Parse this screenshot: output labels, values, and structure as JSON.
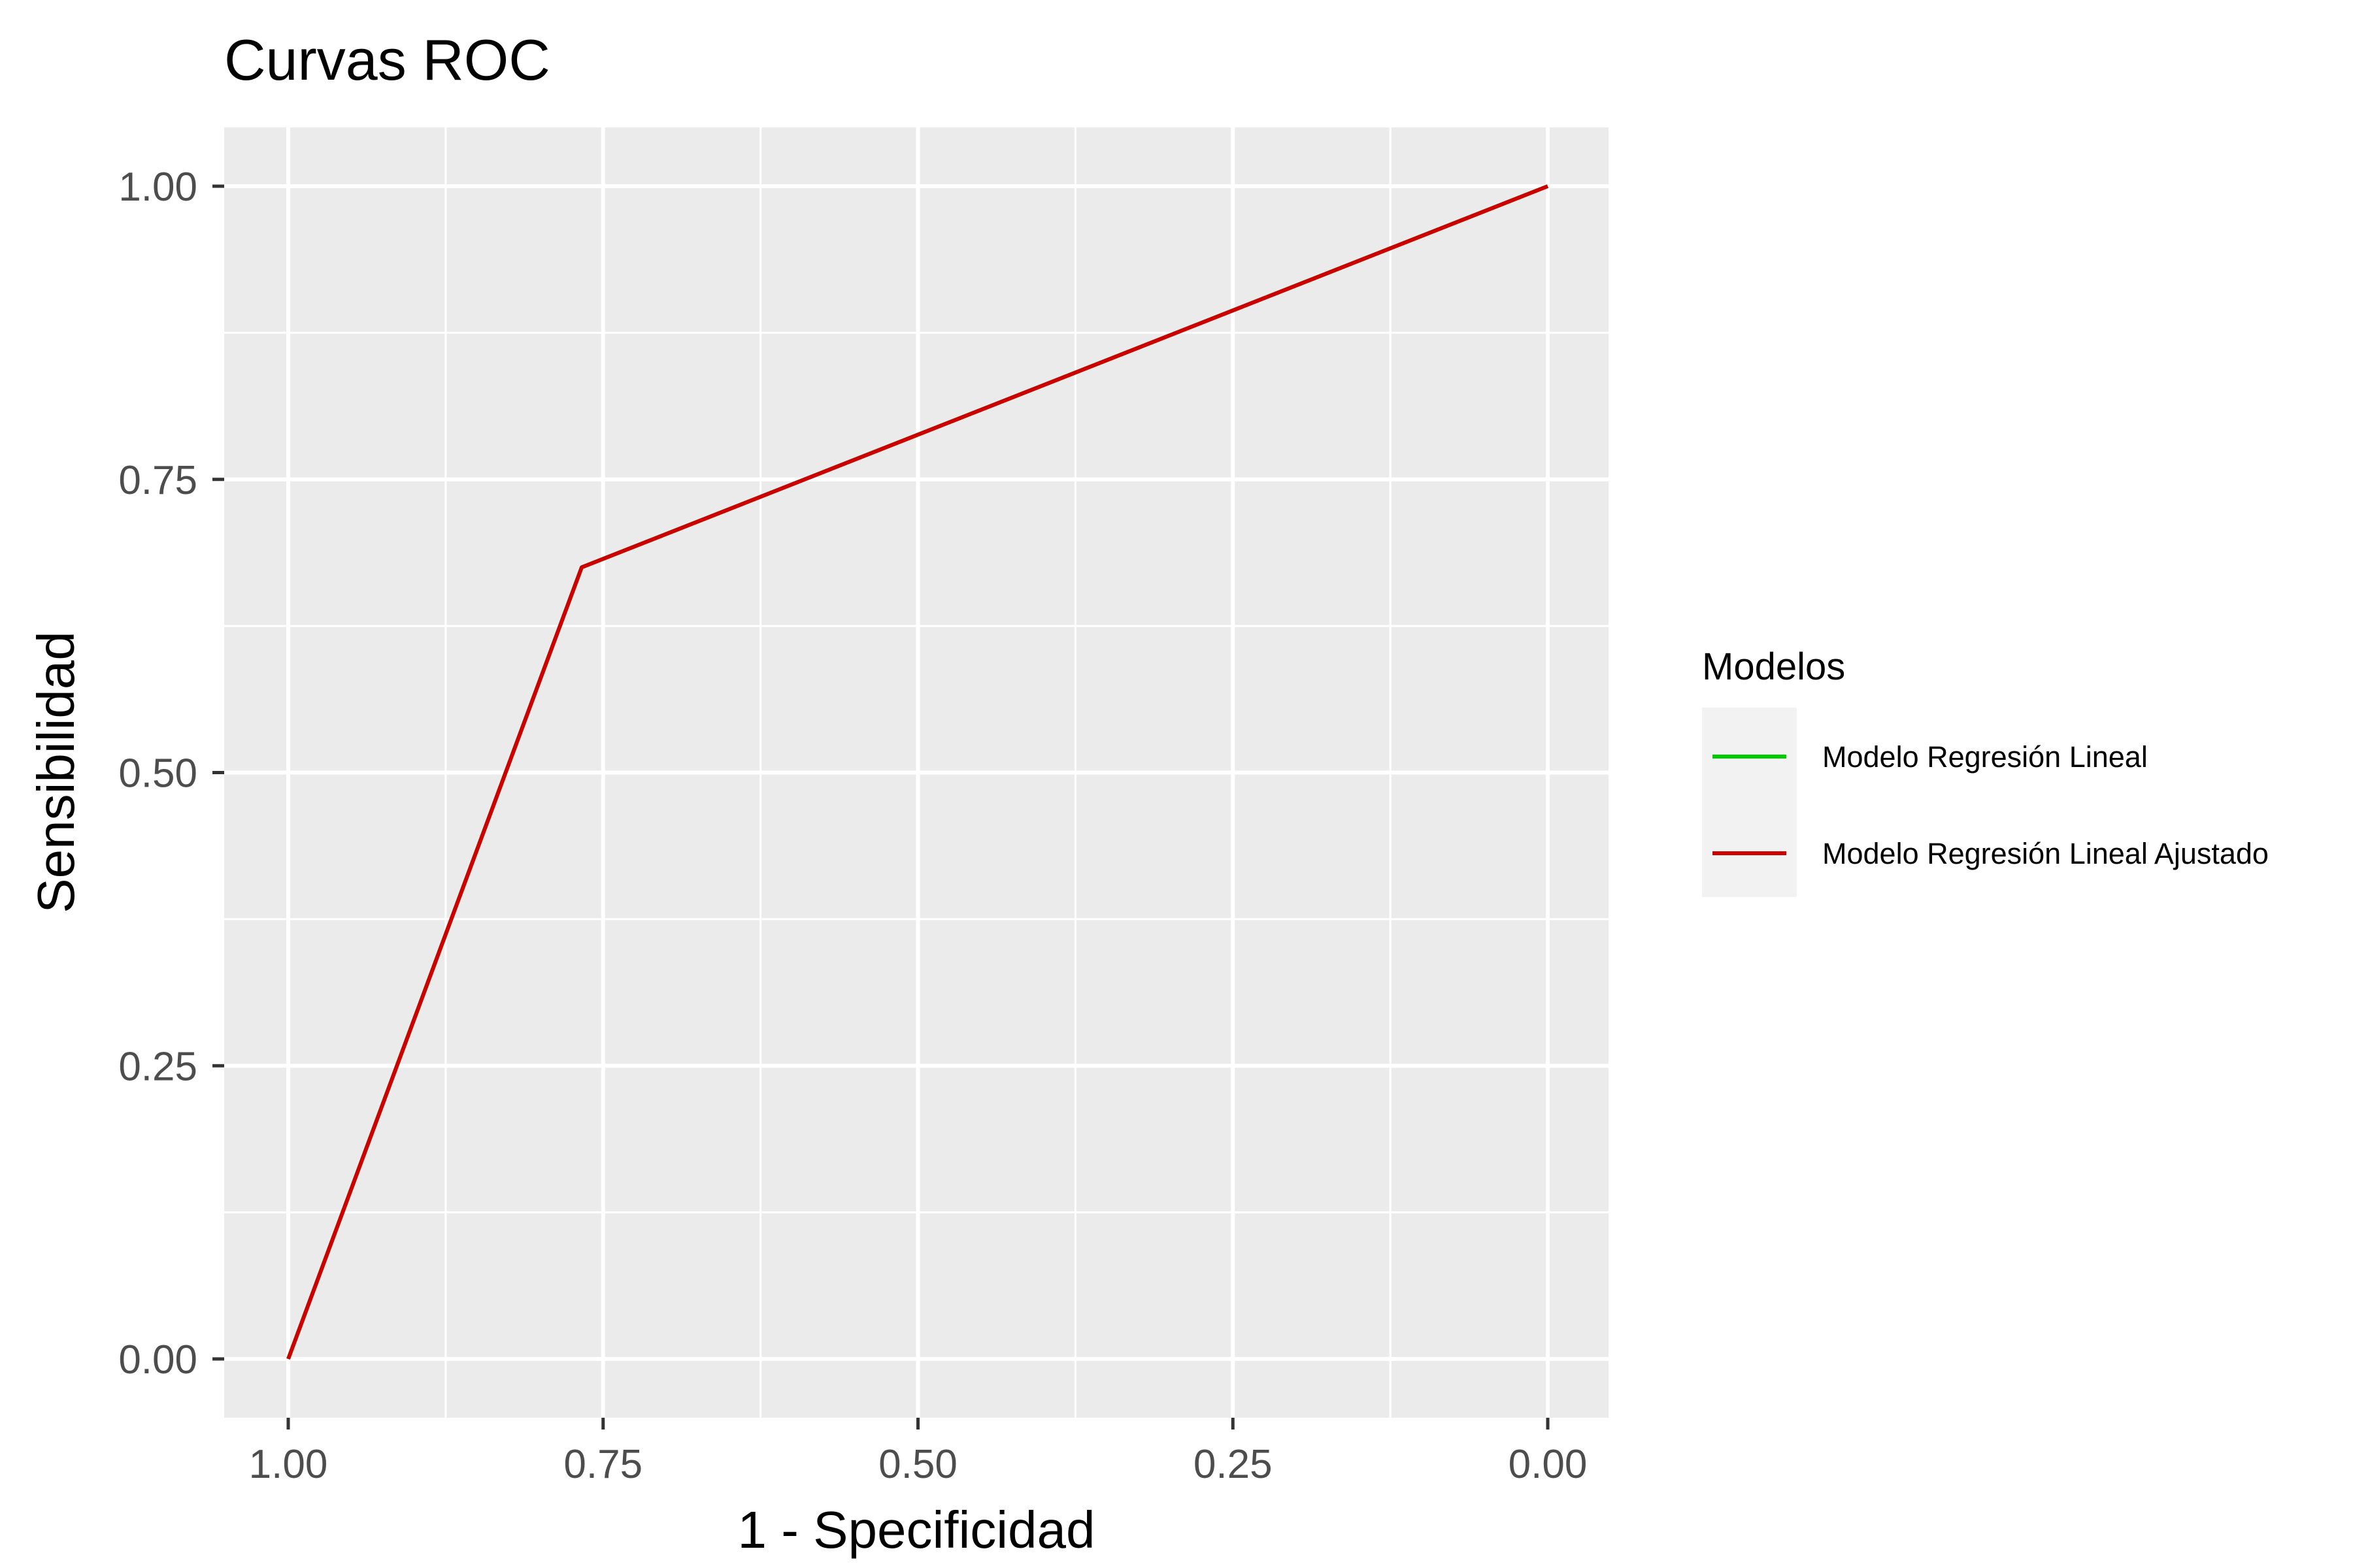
{
  "chart_data": {
    "type": "line",
    "title": "Curvas ROC",
    "xlabel": "1 - Specificidad",
    "ylabel": "Sensibilidad",
    "x_reversed": true,
    "xlim": [
      1.0,
      0.0
    ],
    "ylim": [
      0.0,
      1.0
    ],
    "x_ticks": [
      "1.00",
      "0.75",
      "0.50",
      "0.25",
      "0.00"
    ],
    "y_ticks": [
      "0.00",
      "0.25",
      "0.50",
      "0.75",
      "1.00"
    ],
    "grid": true,
    "background": "#ebebeb",
    "legend": {
      "title": "Modelos",
      "placement": "right",
      "entries": [
        {
          "label": "Modelo Regresión Lineal",
          "color": "#00cc00"
        },
        {
          "label": "Modelo Regresión Lineal Ajustado",
          "color": "#cc0000"
        }
      ]
    },
    "series": [
      {
        "name": "Modelo Regresión Lineal",
        "color": "#00cc00",
        "x": [
          1.0,
          0.767,
          0.0
        ],
        "y": [
          0.0,
          0.675,
          1.0
        ]
      },
      {
        "name": "Modelo Regresión Lineal Ajustado",
        "color": "#cc0000",
        "x": [
          1.0,
          0.767,
          0.0
        ],
        "y": [
          0.0,
          0.675,
          1.0
        ]
      }
    ]
  }
}
